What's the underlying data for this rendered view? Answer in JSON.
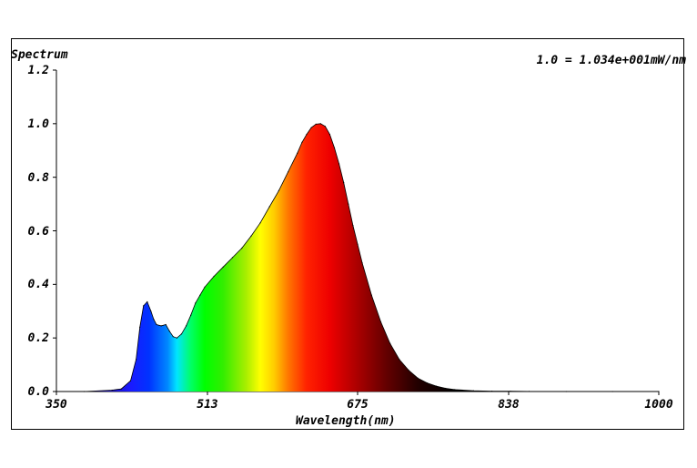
{
  "chart_data": {
    "type": "area",
    "title": "Spectrum",
    "annotation": "1.0 = 1.034e+001mW/nm",
    "xlabel": "Wavelength(nm)",
    "ylabel": "",
    "xlim": [
      350,
      1000
    ],
    "ylim": [
      0,
      1.2
    ],
    "x_ticks": [
      "350",
      "513",
      "675",
      "838",
      "1000"
    ],
    "y_ticks": [
      "0.0",
      "0.2",
      "0.4",
      "0.6",
      "0.8",
      "1.0",
      "1.2"
    ],
    "fill": "visible-spectrum gradient",
    "x": [
      350,
      380,
      410,
      420,
      430,
      436,
      440,
      444,
      448,
      452,
      455,
      458,
      463,
      468,
      472,
      476,
      480,
      485,
      490,
      495,
      500,
      505,
      510,
      520,
      530,
      540,
      550,
      560,
      570,
      580,
      590,
      600,
      610,
      615,
      620,
      625,
      630,
      635,
      640,
      645,
      650,
      655,
      660,
      665,
      670,
      675,
      680,
      690,
      700,
      710,
      720,
      730,
      740,
      750,
      760,
      770,
      780,
      800,
      820,
      840,
      860,
      900,
      950,
      1000
    ],
    "y": [
      0.0,
      0.0,
      0.005,
      0.01,
      0.04,
      0.12,
      0.24,
      0.32,
      0.335,
      0.3,
      0.27,
      0.25,
      0.245,
      0.25,
      0.225,
      0.205,
      0.2,
      0.215,
      0.245,
      0.285,
      0.33,
      0.36,
      0.39,
      0.43,
      0.465,
      0.5,
      0.535,
      0.58,
      0.63,
      0.69,
      0.75,
      0.82,
      0.89,
      0.93,
      0.96,
      0.985,
      0.998,
      1.0,
      0.99,
      0.96,
      0.91,
      0.85,
      0.78,
      0.7,
      0.62,
      0.55,
      0.48,
      0.36,
      0.26,
      0.18,
      0.12,
      0.08,
      0.05,
      0.032,
      0.02,
      0.012,
      0.007,
      0.003,
      0.0015,
      0.001,
      0.0005,
      0.0,
      0.0,
      0.0
    ]
  }
}
